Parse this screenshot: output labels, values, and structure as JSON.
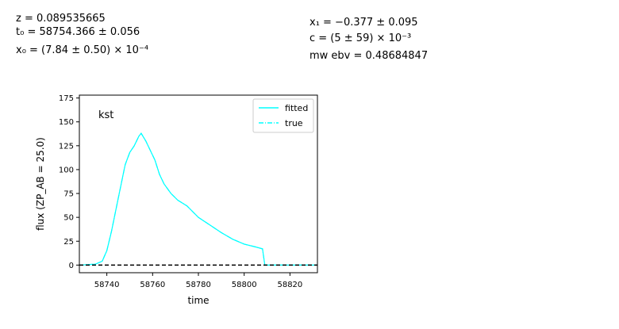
{
  "params": {
    "z": "z = 0.089535665",
    "t0": "t₀ = 58754.366 ± 0.056",
    "x0": "x₀ = (7.84 ± 0.50) × 10⁻⁴",
    "x1": "x₁ = −0.377 ± 0.095",
    "c": "c = (5 ± 59) × 10⁻³",
    "mwebv": "mw ebv = 0.48684847"
  },
  "chart_data": {
    "type": "line",
    "band_label": "kst",
    "xlabel": "time",
    "ylabel": "flux (ZP_AB = 25.0)",
    "xlim": [
      58728,
      58832
    ],
    "ylim": [
      -8,
      178
    ],
    "xticks": [
      58740,
      58760,
      58780,
      58800,
      58820
    ],
    "yticks": [
      0,
      25,
      50,
      75,
      100,
      125,
      150,
      175
    ],
    "legend": {
      "position": "top-right",
      "entries": [
        "fitted",
        "true"
      ]
    },
    "series": [
      {
        "name": "fitted",
        "style": "solid",
        "color": "#00ffff",
        "x": [
          58728,
          58735,
          58738,
          58740,
          58742,
          58745,
          58748,
          58750,
          58752,
          58754,
          58755,
          58757,
          58759,
          58761,
          58763,
          58765,
          58768,
          58771,
          58775,
          58780,
          58785,
          58790,
          58795,
          58800,
          58805,
          58808,
          58809,
          58815,
          58822,
          58832
        ],
        "y": [
          0,
          1,
          4,
          15,
          35,
          70,
          105,
          118,
          125,
          135,
          138,
          130,
          120,
          110,
          95,
          85,
          75,
          68,
          62,
          50,
          42,
          34,
          27,
          22,
          19,
          17,
          0,
          0,
          0,
          0
        ]
      },
      {
        "name": "true",
        "style": "dashed",
        "color": "#00ffff",
        "x": [
          58728,
          58735,
          58738,
          58740,
          58742,
          58745,
          58748,
          58750,
          58752,
          58754,
          58755,
          58757,
          58759,
          58761,
          58763,
          58765,
          58768,
          58771,
          58775,
          58780,
          58785,
          58790,
          58795,
          58800,
          58805,
          58808,
          58809,
          58815,
          58822,
          58832
        ],
        "y": [
          0,
          1,
          4,
          15,
          35,
          70,
          105,
          118,
          125,
          135,
          138,
          130,
          120,
          110,
          95,
          85,
          75,
          68,
          62,
          50,
          42,
          34,
          27,
          22,
          19,
          17,
          0,
          0,
          0,
          0
        ]
      },
      {
        "name": "",
        "style": "dashed",
        "color": "#000000",
        "x": [
          58728,
          58832
        ],
        "y": [
          0,
          0
        ]
      }
    ]
  }
}
